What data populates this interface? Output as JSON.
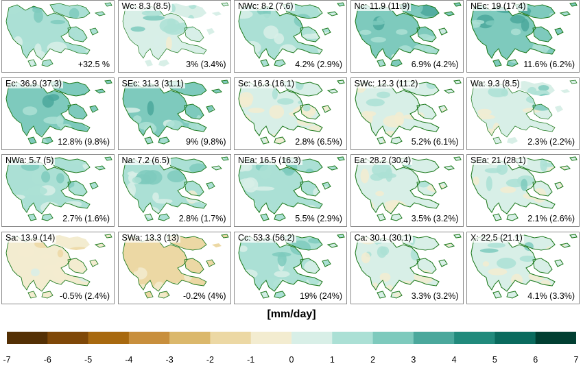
{
  "panels": [
    {
      "title": "",
      "stat": "+32.5 %",
      "val": 1.6,
      "coast": 0.5
    },
    {
      "title": "Wc: 8.3 (8.5)",
      "stat": "3% (3.4%)",
      "val": 0.9,
      "coast": 0.2
    },
    {
      "title": "NWc: 8.2 (7.6)",
      "stat": "4.2% (2.9%)",
      "val": 1.2,
      "coast": 0.8
    },
    {
      "title": "Nc: 11.9 (11.9)",
      "stat": "6.9% (4.2%)",
      "val": 2.0,
      "coast": 0.9
    },
    {
      "title": "NEc: 19 (17.4)",
      "stat": "11.6% (6.2%)",
      "val": 2.3,
      "coast": 0.9
    },
    {
      "title": "Ec: 36.9 (37.3)",
      "stat": "12.8% (9.8%)",
      "val": 2.2,
      "coast": 0.7
    },
    {
      "title": "SEc: 31.3 (31.1)",
      "stat": "9% (9.8%)",
      "val": 2.0,
      "coast": 0.8
    },
    {
      "title": "Sc: 16.3 (16.1)",
      "stat": "2.8% (6.5%)",
      "val": 0.5,
      "coast": 0.9
    },
    {
      "title": "SWc: 12.3 (11.2)",
      "stat": "5.2% (6.1%)",
      "val": 0.6,
      "coast": 0.9
    },
    {
      "title": "Wa: 9.3 (8.5)",
      "stat": "2.3% (2.2%)",
      "val": 0.8,
      "coast": 0.3
    },
    {
      "title": "NWa: 5.7 (5)",
      "stat": "2.7% (1.6%)",
      "val": 1.4,
      "coast": 0.7
    },
    {
      "title": "Na: 7.2 (6.5)",
      "stat": "2.8% (1.7%)",
      "val": 1.1,
      "coast": 0.7
    },
    {
      "title": "NEa: 16.5 (16.3)",
      "stat": "5.5% (2.9%)",
      "val": 1.4,
      "coast": 0.9
    },
    {
      "title": "Ea: 28.2 (30.4)",
      "stat": "3.5% (3.2%)",
      "val": 0.6,
      "coast": 0.9
    },
    {
      "title": "SEa: 21 (28.1)",
      "stat": "2.1% (2.6%)",
      "val": 0.7,
      "coast": 0.9
    },
    {
      "title": "Sa: 13.9 (14)",
      "stat": "-0.5% (2.4%)",
      "val": -0.8,
      "coast": 0.6
    },
    {
      "title": "SWa: 13.3 (13)",
      "stat": "-0.2% (4%)",
      "val": -1.2,
      "coast": 0.6
    },
    {
      "title": "Cc: 53.3 (56.2)",
      "stat": "19% (24%)",
      "val": 1.8,
      "coast": 0.9
    },
    {
      "title": "Ca: 30.1 (30.1)",
      "stat": "3.3% (3.2%)",
      "val": 0.4,
      "coast": 0.9
    },
    {
      "title": "X: 22.5 (21.1)",
      "stat": "4.1% (3.3%)",
      "val": 0.8,
      "coast": 0.9
    }
  ],
  "colorbar": {
    "unit": "[mm/day]",
    "ticks": [
      "-7",
      "-6",
      "-5",
      "-4",
      "-3",
      "-2",
      "-1",
      "0",
      "1",
      "2",
      "3",
      "4",
      "5",
      "6",
      "7"
    ],
    "colors": [
      "#543005",
      "#7f4808",
      "#a8690f",
      "#c88f3d",
      "#dbb86c",
      "#ecd8a4",
      "#f3ecd0",
      "#d8efe7",
      "#abe0d5",
      "#7ecabd",
      "#4ba89c",
      "#218a7c",
      "#0a6b5e",
      "#013f32"
    ]
  },
  "coastline_color": "#1e7a1e"
}
